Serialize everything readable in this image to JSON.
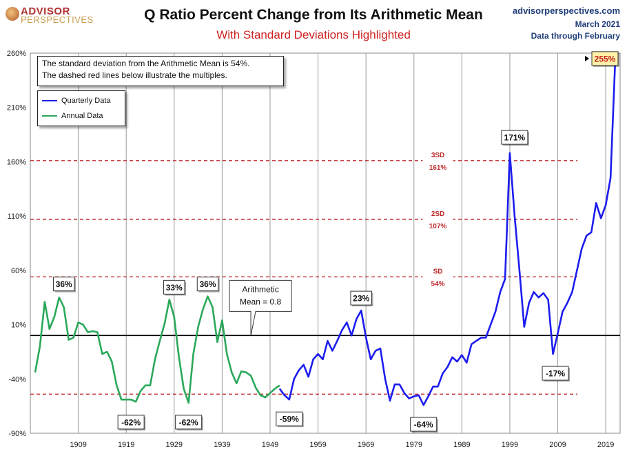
{
  "header": {
    "logo_top": "ADVISOR",
    "logo_bottom": "PERSPECTIVES",
    "title": "Q Ratio Percent Change from Its Arithmetic Mean",
    "subtitle": "With Standard Deviations Highlighted",
    "source": "advisorperspectives.com",
    "date": "March 2021",
    "data_through": "Data through February"
  },
  "note": {
    "line1": "The standard deviation from the Arithmetic Mean is 54%.",
    "line2": "The dashed red lines below illustrate the multiples."
  },
  "legend": {
    "quarterly": "Quarterly Data",
    "annual": "Annual Data"
  },
  "colors": {
    "quarterly": "#1c1cef",
    "annual": "#2aa85a",
    "sd_line": "#c0282a",
    "mean_line": "#000000",
    "grid": "#999999",
    "last_label_bg": "#fff2a8"
  },
  "chart_data": {
    "type": "line",
    "xlim": [
      1899,
      2022
    ],
    "ylim": [
      -90,
      260
    ],
    "yticks": [
      "260%",
      "210%",
      "160%",
      "110%",
      "60%",
      "10%",
      "-40%",
      "-90%"
    ],
    "ytick_values": [
      260,
      210,
      160,
      110,
      60,
      10,
      -40,
      -90
    ],
    "xticks": [
      "1909",
      "1919",
      "1929",
      "1939",
      "1949",
      "1959",
      "1969",
      "1979",
      "1989",
      "1999",
      "2009",
      "2019"
    ],
    "xtick_values": [
      1909,
      1919,
      1929,
      1939,
      1949,
      1959,
      1969,
      1979,
      1989,
      1999,
      2009,
      2019
    ],
    "reference_lines": [
      {
        "value": 0,
        "style": "solid",
        "label": ""
      },
      {
        "value": -54,
        "style": "dashed",
        "label": ""
      },
      {
        "value": 54,
        "style": "dashed",
        "label": "SD",
        "sublabel": "54%"
      },
      {
        "value": 107,
        "style": "dashed",
        "label": "2SD",
        "sublabel": "107%"
      },
      {
        "value": 161,
        "style": "dashed",
        "label": "3SD",
        "sublabel": "161%"
      }
    ],
    "series": [
      {
        "name": "Annual Data",
        "x": [
          1900,
          1901,
          1902,
          1903,
          1904,
          1905,
          1906,
          1907,
          1908,
          1909,
          1910,
          1911,
          1912,
          1913,
          1914,
          1915,
          1916,
          1917,
          1918,
          1919,
          1920,
          1921,
          1922,
          1923,
          1924,
          1925,
          1926,
          1927,
          1928,
          1929,
          1930,
          1931,
          1932,
          1933,
          1934,
          1935,
          1936,
          1937,
          1938,
          1939,
          1940,
          1941,
          1942,
          1943,
          1944,
          1945,
          1946,
          1947,
          1948,
          1949,
          1950,
          1951
        ],
        "y": [
          -34,
          -10,
          31,
          6,
          17,
          35,
          26,
          -4,
          -2,
          12,
          10,
          3,
          4,
          3,
          -17,
          -15,
          -24,
          -46,
          -59,
          -59,
          -59,
          -61,
          -51,
          -46,
          -46,
          -22,
          -5,
          11,
          33,
          17,
          -20,
          -49,
          -62,
          -17,
          8,
          24,
          36,
          26,
          -6,
          14,
          -17,
          -34,
          -44,
          -33,
          -34,
          -37,
          -48,
          -55,
          -57,
          -53,
          -49,
          -46
        ]
      },
      {
        "name": "Quarterly Data",
        "x": [
          1951,
          1952,
          1953,
          1954,
          1955,
          1956,
          1957,
          1958,
          1959,
          1960,
          1961,
          1962,
          1963,
          1964,
          1965,
          1966,
          1967,
          1968,
          1969,
          1970,
          1971,
          1972,
          1973,
          1974,
          1975,
          1976,
          1977,
          1978,
          1979,
          1980,
          1981,
          1982,
          1983,
          1984,
          1985,
          1986,
          1987,
          1988,
          1989,
          1990,
          1991,
          1992,
          1993,
          1994,
          1995,
          1996,
          1997,
          1998,
          1999,
          2000,
          2001,
          2002,
          2003,
          2004,
          2005,
          2006,
          2007,
          2008,
          2009,
          2010,
          2011,
          2012,
          2013,
          2014,
          2015,
          2016,
          2017,
          2018,
          2019,
          2020,
          2021
        ],
        "y": [
          -49,
          -55,
          -59,
          -40,
          -32,
          -27,
          -38,
          -22,
          -17,
          -22,
          -5,
          -14,
          -5,
          5,
          12,
          0,
          15,
          23,
          -2,
          -22,
          -14,
          -12,
          -40,
          -60,
          -45,
          -45,
          -53,
          -58,
          -56,
          -55,
          -64,
          -56,
          -47,
          -47,
          -35,
          -29,
          -20,
          -24,
          -18,
          -25,
          -8,
          -5,
          -2,
          -2,
          10,
          22,
          40,
          52,
          168,
          110,
          60,
          8,
          30,
          40,
          35,
          39,
          33,
          -17,
          2,
          22,
          30,
          40,
          60,
          80,
          92,
          95,
          122,
          108,
          120,
          145,
          255
        ]
      }
    ],
    "annotations": [
      {
        "x": 1906,
        "y": 36,
        "text": "36%"
      },
      {
        "x": 1929,
        "y": 33,
        "text": "33%"
      },
      {
        "x": 1936,
        "y": 36,
        "text": "36%"
      },
      {
        "x": 1920,
        "y": -62,
        "text": "-62%"
      },
      {
        "x": 1932,
        "y": -62,
        "text": "-62%"
      },
      {
        "x": 1953,
        "y": -59,
        "text": "-59%"
      },
      {
        "x": 1968,
        "y": 23,
        "text": "23%"
      },
      {
        "x": 1981,
        "y": -64,
        "text": "-64%"
      },
      {
        "x": 2000,
        "y": 171,
        "text": "171%"
      },
      {
        "x": 2008.5,
        "y": -17,
        "text": "-17%"
      },
      {
        "x": 2021,
        "y": 255,
        "text": "255%"
      }
    ],
    "mean_callout": {
      "line1": "Arithmetic",
      "line2": "Mean = 0.8",
      "x": 1949,
      "y": 0
    },
    "grid": true,
    "legend_position": "top-left"
  }
}
